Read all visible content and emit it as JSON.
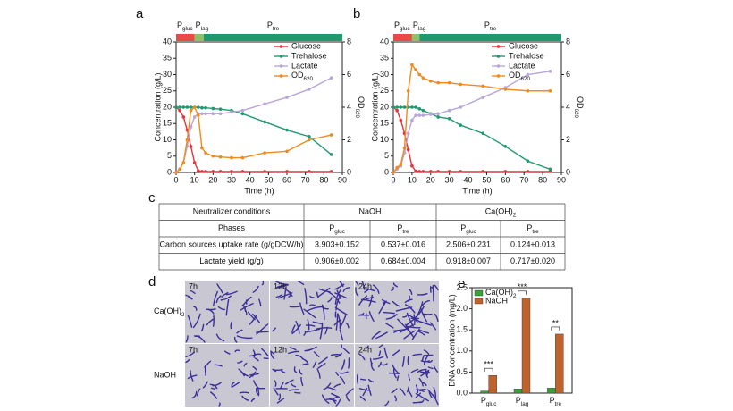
{
  "chart_data": [
    {
      "type": "line",
      "label": "a",
      "xlabel": "Time (h)",
      "ylabel": "Concentration (g/L)",
      "y2label": {
        "text": "OD",
        "sub": "620"
      },
      "xlim": [
        0,
        90
      ],
      "xticks": [
        0,
        10,
        20,
        30,
        40,
        50,
        60,
        70,
        80,
        90
      ],
      "ylim": [
        0,
        40
      ],
      "yticks": [
        0,
        5,
        10,
        15,
        20,
        25,
        30,
        35,
        40
      ],
      "y2lim": [
        0,
        8
      ],
      "y2ticks": [
        0,
        2,
        4,
        6,
        8
      ],
      "phases": [
        {
          "name": {
            "text": "P",
            "sub": "gluc"
          },
          "start": 0,
          "end": 10,
          "color": "#e84a4a"
        },
        {
          "name": {
            "text": "P",
            "sub": "lag"
          },
          "start": 10,
          "end": 15,
          "color": "#8dc26b"
        },
        {
          "name": {
            "text": "P",
            "sub": "tre"
          },
          "start": 15,
          "end": 90,
          "color": "#1e9a6e"
        }
      ],
      "x": [
        0,
        2,
        4,
        6,
        8,
        10,
        12,
        14,
        16,
        20,
        24,
        30,
        36,
        48,
        60,
        72,
        84
      ],
      "series": [
        {
          "name": "Glucose",
          "color": "#e8323c",
          "values": [
            20,
            19,
            17,
            13,
            8,
            3,
            0.5,
            0.3,
            0.3,
            0.3,
            0.3,
            0.3,
            0.3,
            0.3,
            0.3,
            0.3,
            0.3
          ]
        },
        {
          "name": "Trehalose",
          "color": "#1e9a6e",
          "values": [
            20,
            20,
            20,
            20,
            20,
            20,
            20,
            19.8,
            19.8,
            19.6,
            19.4,
            19,
            18,
            15.5,
            13,
            11,
            5.5
          ]
        },
        {
          "name": "Lactate",
          "color": "#b8a6d9",
          "values": [
            0,
            1,
            3,
            8,
            14,
            17,
            18,
            18,
            18,
            18,
            18,
            18.5,
            19,
            21,
            23,
            25.5,
            29
          ]
        },
        {
          "name": {
            "text": "OD",
            "sub": "620"
          },
          "color": "#f08a1c",
          "axis": "y2",
          "values": [
            0,
            0.2,
            0.6,
            2,
            3.8,
            4,
            3.5,
            1.5,
            1.2,
            1,
            0.95,
            0.9,
            0.9,
            1.2,
            1.3,
            2,
            2.3
          ]
        }
      ]
    },
    {
      "type": "line",
      "label": "b",
      "xlabel": "Time (h)",
      "ylabel": "Concentration (g/L)",
      "y2label": {
        "text": "OD",
        "sub": "620"
      },
      "xlim": [
        0,
        90
      ],
      "xticks": [
        0,
        10,
        20,
        30,
        40,
        50,
        60,
        70,
        80,
        90
      ],
      "ylim": [
        0,
        40
      ],
      "yticks": [
        0,
        5,
        10,
        15,
        20,
        25,
        30,
        35,
        40
      ],
      "y2lim": [
        0,
        8
      ],
      "y2ticks": [
        0,
        2,
        4,
        6,
        8
      ],
      "phases": [
        {
          "name": {
            "text": "P",
            "sub": "gluc"
          },
          "start": 0,
          "end": 10,
          "color": "#e84a4a"
        },
        {
          "name": {
            "text": "P",
            "sub": "lag"
          },
          "start": 10,
          "end": 14,
          "color": "#8dc26b"
        },
        {
          "name": {
            "text": "P",
            "sub": "tre"
          },
          "start": 14,
          "end": 90,
          "color": "#1e9a6e"
        }
      ],
      "x": [
        0,
        2,
        4,
        6,
        8,
        10,
        12,
        14,
        16,
        20,
        24,
        30,
        36,
        48,
        60,
        72,
        84
      ],
      "series": [
        {
          "name": "Glucose",
          "color": "#e8323c",
          "values": [
            20,
            19,
            16,
            12,
            7,
            2,
            0.4,
            0.3,
            0.3,
            0.3,
            0.3,
            0.3,
            0.3,
            0.3,
            0.3,
            0.3,
            0.3
          ]
        },
        {
          "name": "Trehalose",
          "color": "#1e9a6e",
          "values": [
            20,
            20,
            20,
            20,
            20,
            20,
            20,
            19.5,
            19,
            18,
            17,
            16.5,
            14.5,
            12,
            8,
            3.5,
            1
          ]
        },
        {
          "name": "Lactate",
          "color": "#b8a6d9",
          "values": [
            0,
            1,
            2,
            6,
            12,
            16,
            17.5,
            17.5,
            17.5,
            17.8,
            18,
            19,
            20,
            23,
            26,
            30,
            31
          ]
        },
        {
          "name": {
            "text": "OD",
            "sub": "620"
          },
          "color": "#f08a1c",
          "axis": "y2",
          "values": [
            0,
            0.3,
            0.5,
            1.5,
            5,
            6.6,
            6.3,
            6,
            5.8,
            5.6,
            5.5,
            5.5,
            5.4,
            5.3,
            5.1,
            5,
            5
          ]
        }
      ]
    },
    {
      "type": "bar",
      "label": "e",
      "ylabel": "DNA concentration (mg/L)",
      "categories": [
        {
          "text": "P",
          "sub": "gluc"
        },
        {
          "text": "P",
          "sub": "lag"
        },
        {
          "text": "P",
          "sub": "tre"
        }
      ],
      "ylim": [
        0,
        2.5
      ],
      "yticks": [
        {
          "value": 0,
          "label": "0.0"
        },
        0.5,
        {
          "value": 1,
          "label": "1.0"
        },
        1.5,
        {
          "value": 2,
          "label": "2.0"
        },
        2.5
      ],
      "series": [
        {
          "name": {
            "text": "Ca(OH)",
            "sub": "2"
          },
          "color": "#3aa13a",
          "values": [
            0.05,
            0.1,
            0.12
          ]
        },
        {
          "name": "NaOH",
          "color": "#c0622b",
          "values": [
            0.42,
            2.25,
            1.4
          ]
        }
      ],
      "annotations": [
        "***",
        "***",
        "**"
      ]
    }
  ],
  "table": {
    "label": "c",
    "header": [
      "Neutralizer conditions",
      "NaOH",
      {
        "text": "Ca(OH)",
        "sub": "2"
      }
    ],
    "rows": [
      [
        "Phases",
        {
          "text": "P",
          "sub": "gluc"
        },
        {
          "text": "P",
          "sub": "tre"
        },
        {
          "text": "P",
          "sub": "gluc"
        },
        {
          "text": "P",
          "sub": "tre"
        }
      ],
      [
        "Carbon sources uptake rate (g/gDCW/h)",
        "3.903±0.152",
        "0.537±0.016",
        "2.506±0.231",
        "0.124±0.013"
      ],
      [
        "Lactate yield (g/g)",
        "0.906±0.002",
        "0.684±0.004",
        "0.918±0.007",
        "0.717±0.020"
      ]
    ]
  },
  "micrographs": {
    "label": "d",
    "columns": [
      "7h",
      "12h",
      "24h"
    ],
    "rows": [
      {
        "text": "Ca(OH)",
        "sub": "2"
      },
      "NaOH"
    ]
  }
}
